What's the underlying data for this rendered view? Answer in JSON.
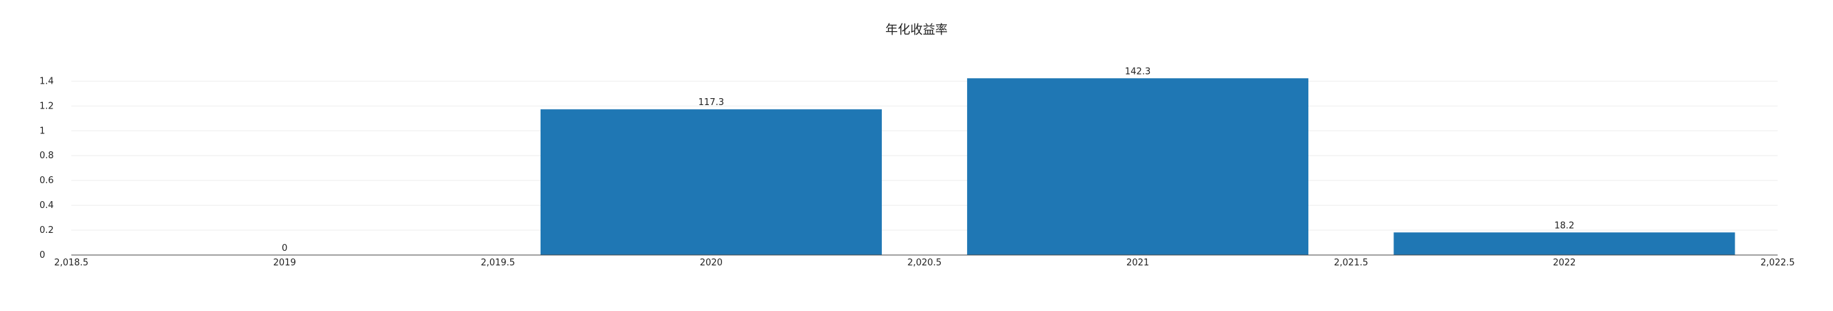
{
  "chart_data": {
    "type": "bar",
    "title": "年化收益率",
    "xlabel": "",
    "ylabel": "",
    "x": [
      2019,
      2020,
      2021,
      2022
    ],
    "values": [
      0,
      1.173,
      1.423,
      0.182
    ],
    "data_labels": [
      "0",
      "117.3",
      "142.3",
      "18.2"
    ],
    "xlim": [
      2018.5,
      2022.5
    ],
    "ylim": [
      0,
      1.43
    ],
    "x_ticks": [
      2018.5,
      2019,
      2019.5,
      2020,
      2020.5,
      2021,
      2021.5,
      2022,
      2022.5
    ],
    "x_tick_labels": [
      "2,018.5",
      "2019",
      "2,019.5",
      "2020",
      "2,020.5",
      "2021",
      "2,021.5",
      "2022",
      "2,022.5"
    ],
    "y_ticks": [
      0,
      0.2,
      0.4,
      0.6,
      0.8,
      1,
      1.2,
      1.4
    ],
    "y_tick_labels": [
      "0",
      "0.2",
      "0.4",
      "0.6",
      "0.8",
      "1",
      "1.2",
      "1.4"
    ],
    "bar_width": 0.8,
    "grid": true,
    "legend": "none",
    "colors": {
      "bar": "#1f77b4",
      "grid": "#eeeeee",
      "axis": "#444444"
    }
  }
}
